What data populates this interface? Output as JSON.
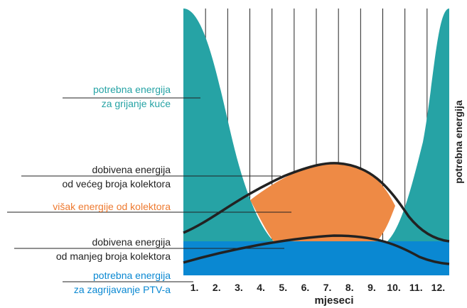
{
  "annotations": [
    {
      "lines": [
        "potrebna energija",
        "za grijanje kuće"
      ]
    },
    {
      "lines": [
        "dobivena energija",
        "od većeg broja kolektora"
      ]
    },
    {
      "lines": [
        "višak energije od kolektora"
      ]
    },
    {
      "lines": [
        "dobivena energija",
        "od manjeg broja kolektora"
      ]
    },
    {
      "lines": [
        "potrebna energija",
        "za zagrijavanje PTV-a"
      ]
    }
  ],
  "months": [
    "1.",
    "2.",
    "3.",
    "4.",
    "5.",
    "6.",
    "7.",
    "8.",
    "9.",
    "10.",
    "11.",
    "12."
  ],
  "x_axis_label": "mjeseci",
  "y_axis_label": "potrebna energija"
}
